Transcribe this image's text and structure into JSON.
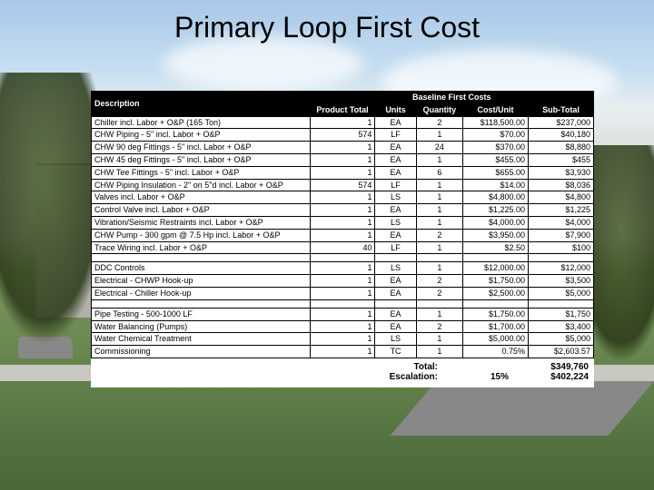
{
  "slide": {
    "title": "Primary Loop First Cost",
    "background_colors": {
      "sky_top": "#a8c8e8",
      "sky_mid": "#e8eef0",
      "grass": "#6a8850"
    }
  },
  "table": {
    "type": "table",
    "header_bg": "#000000",
    "header_fg": "#ffffff",
    "cell_border": "#000000",
    "font_size_pt": 7,
    "columns": [
      {
        "key": "description",
        "label": "Description",
        "align": "left",
        "sublabel": ""
      },
      {
        "key": "product_total",
        "label": "Baseline First Costs",
        "sublabel": "Product Total",
        "align": "right"
      },
      {
        "key": "units",
        "label": "",
        "sublabel": "Units",
        "align": "center"
      },
      {
        "key": "quantity",
        "label": "",
        "sublabel": "Quantity",
        "align": "center"
      },
      {
        "key": "cost_unit",
        "label": "",
        "sublabel": "Cost/Unit",
        "align": "right"
      },
      {
        "key": "sub_total",
        "label": "",
        "sublabel": "Sub-Total",
        "align": "right"
      }
    ],
    "groups": [
      {
        "rows": [
          {
            "description": "Chiller incl. Labor + O&P (165 Ton)",
            "product_total": "1",
            "units": "EA",
            "quantity": "2",
            "cost_unit": "$118,500.00",
            "sub_total": "$237,000"
          },
          {
            "description": "CHW Piping - 5\" incl. Labor + O&P",
            "product_total": "574",
            "units": "LF",
            "quantity": "1",
            "cost_unit": "$70.00",
            "sub_total": "$40,180"
          },
          {
            "description": "CHW 90 deg Fittings - 5\" incl. Labor + O&P",
            "product_total": "1",
            "units": "EA",
            "quantity": "24",
            "cost_unit": "$370.00",
            "sub_total": "$8,880"
          },
          {
            "description": "CHW 45 deg Fittings - 5\" incl. Labor + O&P",
            "product_total": "1",
            "units": "EA",
            "quantity": "1",
            "cost_unit": "$455.00",
            "sub_total": "$455"
          },
          {
            "description": "CHW Tee Fittings - 5\" incl. Labor + O&P",
            "product_total": "1",
            "units": "EA",
            "quantity": "6",
            "cost_unit": "$655.00",
            "sub_total": "$3,930"
          },
          {
            "description": "CHW Piping Insulation - 2\" on 5\"d incl. Labor + O&P",
            "product_total": "574",
            "units": "LF",
            "quantity": "1",
            "cost_unit": "$14.00",
            "sub_total": "$8,036"
          },
          {
            "description": "Valves incl. Labor + O&P",
            "product_total": "1",
            "units": "LS",
            "quantity": "1",
            "cost_unit": "$4,800.00",
            "sub_total": "$4,800"
          },
          {
            "description": "Control Valve incl. Labor + O&P",
            "product_total": "1",
            "units": "EA",
            "quantity": "1",
            "cost_unit": "$1,225.00",
            "sub_total": "$1,225"
          },
          {
            "description": "Vibration/Seismic Restraints incl. Labor + O&P",
            "product_total": "1",
            "units": "LS",
            "quantity": "1",
            "cost_unit": "$4,000.00",
            "sub_total": "$4,000"
          },
          {
            "description": "CHW Pump - 300 gpm @ 7.5 Hp incl. Labor + O&P",
            "product_total": "1",
            "units": "EA",
            "quantity": "2",
            "cost_unit": "$3,950.00",
            "sub_total": "$7,900"
          },
          {
            "description": "Trace Wiring incl. Labor + O&P",
            "product_total": "40",
            "units": "LF",
            "quantity": "1",
            "cost_unit": "$2.50",
            "sub_total": "$100"
          }
        ]
      },
      {
        "rows": [
          {
            "description": "DDC Controls",
            "product_total": "1",
            "units": "LS",
            "quantity": "1",
            "cost_unit": "$12,000.00",
            "sub_total": "$12,000"
          },
          {
            "description": "Electrical - CHWP Hook-up",
            "product_total": "1",
            "units": "EA",
            "quantity": "2",
            "cost_unit": "$1,750.00",
            "sub_total": "$3,500"
          },
          {
            "description": "Electrical - Chiller Hook-up",
            "product_total": "1",
            "units": "EA",
            "quantity": "2",
            "cost_unit": "$2,500.00",
            "sub_total": "$5,000"
          }
        ]
      },
      {
        "rows": [
          {
            "description": "Pipe Testing - 500-1000 LF",
            "product_total": "1",
            "units": "EA",
            "quantity": "1",
            "cost_unit": "$1,750.00",
            "sub_total": "$1,750"
          },
          {
            "description": "Water Balancing (Pumps)",
            "product_total": "1",
            "units": "EA",
            "quantity": "2",
            "cost_unit": "$1,700.00",
            "sub_total": "$3,400"
          },
          {
            "description": "Water Chemical Treatment",
            "product_total": "1",
            "units": "LS",
            "quantity": "1",
            "cost_unit": "$5,000.00",
            "sub_total": "$5,000"
          },
          {
            "description": "Commissioning",
            "product_total": "1",
            "units": "TC",
            "quantity": "1",
            "cost_unit": "0.75%",
            "sub_total": "$2,603.57"
          }
        ]
      }
    ],
    "footer": {
      "total_label": "Total:",
      "total_value": "$349,760",
      "escalation_label": "Escalation:",
      "escalation_pct": "15%",
      "escalation_value": "$402,224"
    }
  }
}
